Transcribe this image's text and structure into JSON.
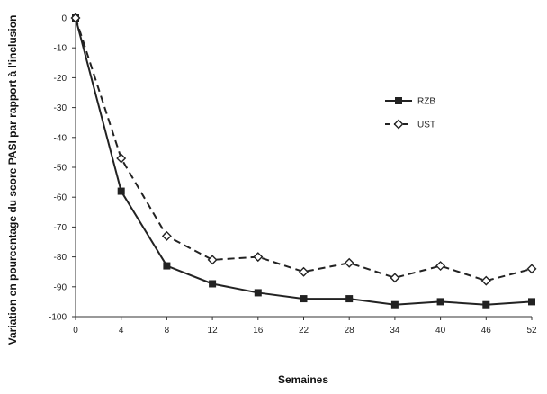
{
  "chart_data": {
    "type": "line",
    "title": "",
    "xlabel": "Semaines",
    "ylabel": "Variation en pourcentage du score PASI par rapport à l'inclusion",
    "x": [
      "0",
      "4",
      "8",
      "12",
      "16",
      "22",
      "28",
      "34",
      "40",
      "46",
      "52"
    ],
    "ylim": [
      -100,
      0
    ],
    "yticks": [
      0,
      -10,
      -20,
      -30,
      -40,
      -50,
      -60,
      -70,
      -80,
      -90,
      -100
    ],
    "grid": false,
    "legend_position": "right",
    "series": [
      {
        "name": "RZB",
        "style": "solid",
        "marker": "filled-square",
        "color": "#222222",
        "values": [
          0,
          -58,
          -83,
          -89,
          -92,
          -94,
          -94,
          -96,
          -95,
          -96,
          -95
        ]
      },
      {
        "name": "UST",
        "style": "dashed",
        "marker": "open-diamond",
        "color": "#222222",
        "values": [
          0,
          -47,
          -73,
          -81,
          -80,
          -85,
          -82,
          -87,
          -83,
          -88,
          -84
        ]
      }
    ]
  }
}
